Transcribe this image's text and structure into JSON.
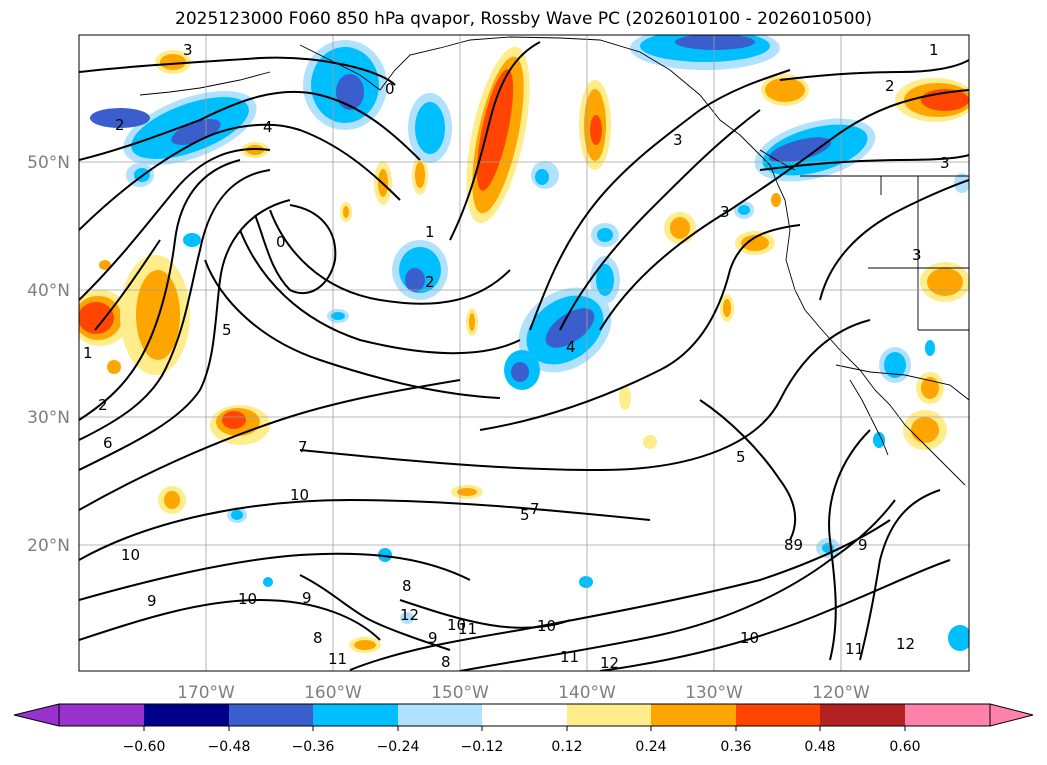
{
  "title": "2025123000 F060 850 hPa qvapor, Rossby Wave PC (2026010100 - 2026010500)",
  "map": {
    "projection": "lat-lon",
    "lon_range": [
      -180,
      -110
    ],
    "lat_range": [
      10,
      60
    ],
    "gridlines": true,
    "lon_ticks": [
      "170°W",
      "160°W",
      "150°W",
      "140°W",
      "130°W",
      "120°W"
    ],
    "lat_ticks": [
      "50°N",
      "40°N",
      "30°N",
      "20°N"
    ],
    "contour_labels": [
      "3",
      "2",
      "1",
      "0",
      "1",
      "2",
      "3",
      "4",
      "5",
      "6",
      "7",
      "8",
      "9",
      "10",
      "11",
      "12",
      "4",
      "3",
      "2",
      "5",
      "7",
      "10",
      "9",
      "10",
      "8",
      "9",
      "10",
      "8",
      "11",
      "11",
      "12",
      "10",
      "9",
      "12",
      "11",
      "10",
      "89",
      "5",
      "3",
      "3",
      "1",
      "2",
      "0"
    ]
  },
  "colorbar": {
    "ticks": [
      "−0.60",
      "−0.48",
      "−0.36",
      "−0.24",
      "−0.12",
      "0.12",
      "0.24",
      "0.36",
      "0.48",
      "0.60"
    ],
    "colors": [
      "#9932cc",
      "#00008b",
      "#3a5fcd",
      "#00bfff",
      "#b0e2ff",
      "#ffffff",
      "#ffec8b",
      "#ffa500",
      "#ff4500",
      "#b22222",
      "#ff82ab"
    ],
    "extend": "both"
  },
  "fill_colors": {
    "neg_light": "#b0e2ff",
    "neg_mid": "#00bfff",
    "neg_strong": "#3a5fcd",
    "pos_light": "#ffec8b",
    "pos_mid": "#ffa500",
    "pos_strong": "#ff4500"
  }
}
